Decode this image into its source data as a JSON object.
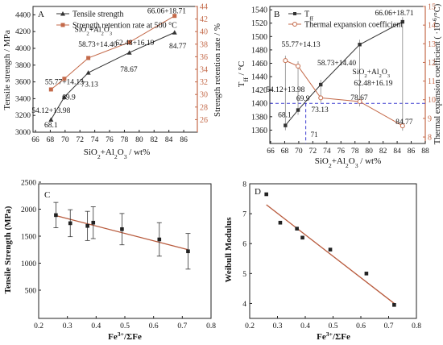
{
  "chart_data": [
    {
      "panel": "A",
      "type": "line",
      "x_label": "SiO₂+Al₂O₃ / wt%",
      "y_label": "Tensile strength / MPa",
      "y2_label": "Strength retention rate / %",
      "x_range": [
        66,
        88
      ],
      "x_ticks": [
        "66",
        "68",
        "70",
        "72",
        "74",
        "76",
        "78",
        "80",
        "82",
        "84",
        "86"
      ],
      "y_range": [
        3000,
        4500
      ],
      "y_ticks": [
        "3000",
        "3200",
        "3400",
        "3600",
        "3800",
        "4000",
        "4200",
        "4400"
      ],
      "y2_range": [
        24,
        44
      ],
      "y2_ticks": [
        "26",
        "28",
        "30",
        "32",
        "34",
        "36",
        "38",
        "40",
        "42",
        "44"
      ],
      "legend": [
        "Tensile strength",
        "Strength retention rate at 500 °C"
      ],
      "series": [
        {
          "name": "Tensile strength",
          "axis": "left",
          "color": "#333333",
          "x": [
            68.1,
            69.9,
            73.13,
            78.67,
            84.77
          ],
          "y": [
            3150,
            3420,
            3710,
            3950,
            4190
          ]
        },
        {
          "name": "Strength retention rate at 500 °C",
          "axis": "right",
          "color": "#c46a4a",
          "x": [
            68.1,
            69.9,
            73.13,
            78.67,
            84.77
          ],
          "y": [
            30.8,
            32.5,
            35.8,
            38.3,
            42.5
          ]
        }
      ],
      "annotations": [
        {
          "text": "54.12+13.98",
          "x": 68.1,
          "y": 3230
        },
        {
          "text": "68.1",
          "x": 68.1,
          "y": 3060
        },
        {
          "text": "55.77+14.13",
          "x": 69.9,
          "y": 3570
        },
        {
          "text": "69.9",
          "x": 70.5,
          "y": 3390
        },
        {
          "text": "SiO₂+Al₂O₃",
          "x": 73.8,
          "y": 4195
        },
        {
          "text": "58.73+14.40",
          "x": 74.4,
          "y": 4020
        },
        {
          "text": "73.13",
          "x": 73.3,
          "y": 3545
        },
        {
          "text": "62.48+16.19",
          "x": 79.4,
          "y": 4040
        },
        {
          "text": "78.67",
          "x": 78.6,
          "y": 3720
        },
        {
          "text": "66.06+18.71",
          "x": 83.7,
          "y": 4420
        },
        {
          "text": "84.77",
          "x": 85.2,
          "y": 4000
        }
      ]
    },
    {
      "panel": "B",
      "type": "line",
      "x_label": "SiO₂+Al₂O₃ / wt%",
      "y_label": "T_ff / °C",
      "y2_label": "Thermal expansion coefficient ( ·10⁻⁶/°C)",
      "x_range": [
        66,
        88
      ],
      "x_ticks": [
        "66",
        "68",
        "70",
        "72",
        "74",
        "76",
        "78",
        "80",
        "82",
        "84",
        "86",
        "88"
      ],
      "y_range": [
        1340,
        1545
      ],
      "y_ticks": [
        "1360",
        "1380",
        "1400",
        "1420",
        "1440",
        "1460",
        "1480",
        "1500",
        "1520",
        "1540"
      ],
      "y2_range": [
        8,
        15
      ],
      "y2_ticks": [
        "8",
        "9",
        "10",
        "11",
        "12",
        "13",
        "14",
        "15"
      ],
      "legend": [
        "T_ff",
        "Thermal expansion coefficient"
      ],
      "series": [
        {
          "name": "T_ff",
          "axis": "left",
          "color": "#333333",
          "x": [
            68.1,
            69.9,
            73.13,
            78.67,
            84.77
          ],
          "y": [
            1367,
            1390,
            1428,
            1488,
            1522
          ]
        },
        {
          "name": "Thermal expansion coefficient",
          "axis": "right",
          "color": "#c46a4a",
          "x": [
            68.1,
            69.9,
            73.13,
            78.67,
            84.77
          ],
          "y": [
            12.1,
            11.8,
            10.1,
            9.9,
            8.6
          ]
        }
      ],
      "reference": {
        "y": 1400,
        "x": 71,
        "label": "71"
      },
      "annotations": [
        {
          "text": "55.77+14.13",
          "x": 70.3,
          "y": 1485
        },
        {
          "text": "58.73+14.40",
          "x": 75.4,
          "y": 1457
        },
        {
          "text": "54.12+13.98",
          "x": 68.1,
          "y": 1417
        },
        {
          "text": "69.9",
          "x": 70.6,
          "y": 1404
        },
        {
          "text": "68.1",
          "x": 68.0,
          "y": 1379
        },
        {
          "text": "73.13",
          "x": 73.0,
          "y": 1387
        },
        {
          "text": "SiO₂+Al₂O₃",
          "x": 80.3,
          "y": 1444
        },
        {
          "text": "62.48+16.19",
          "x": 80.6,
          "y": 1427
        },
        {
          "text": "78.67",
          "x": 78.6,
          "y": 1405
        },
        {
          "text": "66.06+18.71",
          "x": 83.6,
          "y": 1532
        },
        {
          "text": "84.77",
          "x": 85.0,
          "y": 1369
        }
      ]
    },
    {
      "panel": "C",
      "type": "scatter",
      "x_label": "Fe³⁺/ΣFe",
      "y_label": "Tensile Strength (MPa)",
      "x_range": [
        0.2,
        0.8
      ],
      "x_ticks": [
        "0.2",
        "0.3",
        "0.4",
        "0.5",
        "0.6",
        "0.7",
        "0.8"
      ],
      "y_range": [
        500,
        2500
      ],
      "y_ticks": [
        "500",
        "1000",
        "1500",
        "2000",
        "2500"
      ],
      "points": [
        {
          "x": 0.26,
          "y": 1890,
          "err": 235
        },
        {
          "x": 0.31,
          "y": 1740,
          "err": 250
        },
        {
          "x": 0.37,
          "y": 1690,
          "err": 270
        },
        {
          "x": 0.39,
          "y": 1750,
          "err": 295
        },
        {
          "x": 0.49,
          "y": 1630,
          "err": 290
        },
        {
          "x": 0.62,
          "y": 1440,
          "err": 310
        },
        {
          "x": 0.72,
          "y": 1220,
          "err": 330
        }
      ],
      "fit": {
        "x": [
          0.26,
          0.72
        ],
        "y": [
          1880,
          1250
        ],
        "color": "#b85a3c"
      }
    },
    {
      "panel": "D",
      "type": "scatter",
      "x_label": "Fe³⁺/ΣFe",
      "y_label": "Weibull Modulus",
      "x_range": [
        0.2,
        0.8
      ],
      "x_ticks": [
        "0.2",
        "0.3",
        "0.4",
        "0.5",
        "0.6",
        "0.7",
        "0.8"
      ],
      "y_range": [
        3.5,
        8.0
      ],
      "y_ticks": [
        "4",
        "5",
        "6",
        "7",
        "8"
      ],
      "points": [
        {
          "x": 0.26,
          "y": 7.65
        },
        {
          "x": 0.31,
          "y": 6.7
        },
        {
          "x": 0.37,
          "y": 6.5
        },
        {
          "x": 0.39,
          "y": 6.2
        },
        {
          "x": 0.49,
          "y": 5.8
        },
        {
          "x": 0.62,
          "y": 5.0
        },
        {
          "x": 0.72,
          "y": 3.95
        }
      ],
      "fit": {
        "x": [
          0.26,
          0.72
        ],
        "y": [
          7.3,
          4.0
        ],
        "color": "#b85a3c"
      }
    }
  ]
}
